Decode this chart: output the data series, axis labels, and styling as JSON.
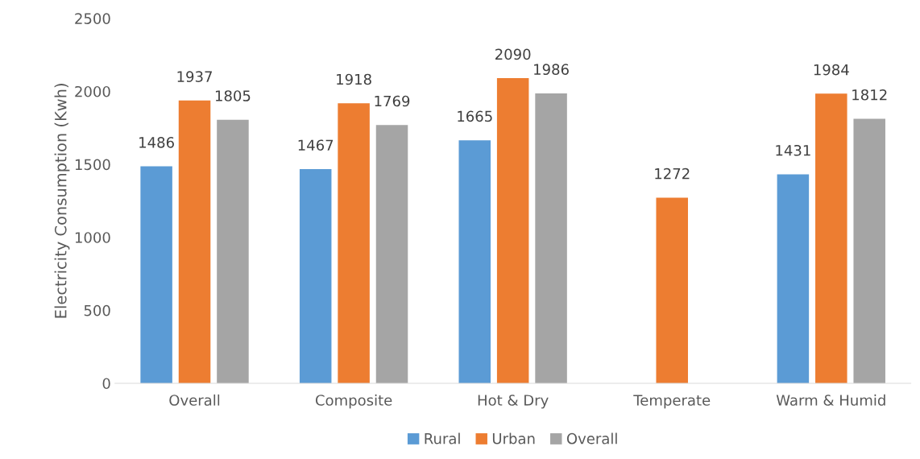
{
  "chart_data": {
    "type": "bar",
    "ylabel": "Electricity Consumption (Kwh)",
    "categories": [
      "Overall",
      "Composite",
      "Hot & Dry",
      "Temperate",
      "Warm & Humid"
    ],
    "series": [
      {
        "name": "Rural",
        "color": "#5b9bd5",
        "values": [
          1486,
          1467,
          1665,
          null,
          1431
        ]
      },
      {
        "name": "Urban",
        "color": "#ed7d31",
        "values": [
          1937,
          1918,
          2090,
          1272,
          1984
        ]
      },
      {
        "name": "Overall",
        "color": "#a5a5a5",
        "values": [
          1805,
          1769,
          1986,
          null,
          1812
        ]
      }
    ],
    "ylim": [
      0,
      2500
    ],
    "yticks": [
      0,
      500,
      1000,
      1500,
      2000,
      2500
    ],
    "data_labels": true,
    "legend": "bottom",
    "grid": false
  }
}
